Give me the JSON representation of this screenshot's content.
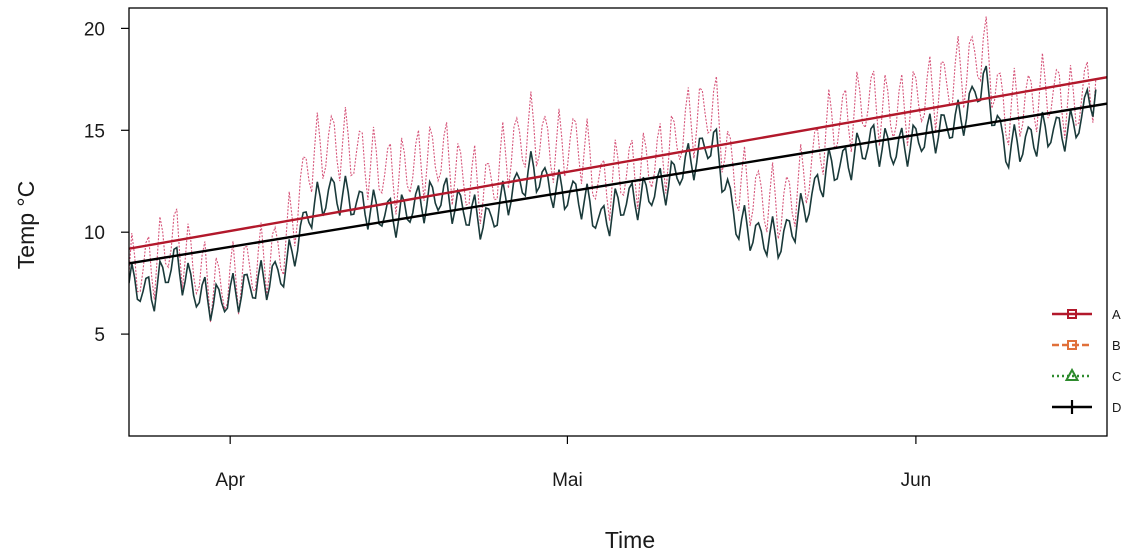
{
  "chart_data": {
    "type": "line",
    "title": "",
    "xlabel": "Time",
    "ylabel": "Temp °C",
    "x_ticks": [
      {
        "label": "Apr",
        "date": "2021-04-01"
      },
      {
        "label": "Mai",
        "date": "2021-05-01"
      },
      {
        "label": "Jun",
        "date": "2021-06-01"
      }
    ],
    "y_ticks": [
      5,
      10,
      15,
      20
    ],
    "xlim": [
      "2021-03-23",
      "2021-06-18"
    ],
    "ylim": [
      0,
      21
    ],
    "grid": false,
    "legend_position": "bottom-right",
    "legend": [
      {
        "label": "A",
        "color": "#b2182b",
        "marker": "square",
        "dash": "solid"
      },
      {
        "label": "B",
        "color": "#e0703a",
        "marker": "square",
        "dash": "dashed"
      },
      {
        "label": "C",
        "color": "#2e8b2e",
        "marker": "triangle",
        "dash": "dotted"
      },
      {
        "label": "D",
        "color": "#000000",
        "marker": "plus",
        "dash": "solid"
      }
    ],
    "series": [
      {
        "color": "#d6557a",
        "style": "dotted",
        "x": [
          "2021-03-23",
          "2021-03-25",
          "2021-03-27",
          "2021-03-29",
          "2021-03-31",
          "2021-04-02",
          "2021-04-04",
          "2021-04-06",
          "2021-04-08",
          "2021-04-10",
          "2021-04-12",
          "2021-04-14",
          "2021-04-16",
          "2021-04-18",
          "2021-04-20",
          "2021-04-22",
          "2021-04-24",
          "2021-04-26",
          "2021-04-28",
          "2021-04-30",
          "2021-05-02",
          "2021-05-04",
          "2021-05-06",
          "2021-05-08",
          "2021-05-10",
          "2021-05-12",
          "2021-05-14",
          "2021-05-16",
          "2021-05-18",
          "2021-05-20",
          "2021-05-22",
          "2021-05-24",
          "2021-05-26",
          "2021-05-28",
          "2021-05-30",
          "2021-06-01",
          "2021-06-03",
          "2021-06-05",
          "2021-06-07",
          "2021-06-09",
          "2021-06-11",
          "2021-06-13",
          "2021-06-15",
          "2021-06-17"
        ],
        "y": [
          8.0,
          8.5,
          9.8,
          8.2,
          7.2,
          8.0,
          8.6,
          9.5,
          13.5,
          14.5,
          14.0,
          13.2,
          12.8,
          13.5,
          13.8,
          12.5,
          12.2,
          14.2,
          15.0,
          14.0,
          14.5,
          12.2,
          13.0,
          13.2,
          14.0,
          15.5,
          16.2,
          12.5,
          11.8,
          11.2,
          12.5,
          15.0,
          15.8,
          16.5,
          15.8,
          16.5,
          17.0,
          17.8,
          19.0,
          15.8,
          16.5,
          17.0,
          16.2,
          17.5
        ]
      },
      {
        "color": "#1a3a3a",
        "style": "solid",
        "x": [
          "2021-03-23",
          "2021-03-25",
          "2021-03-27",
          "2021-03-29",
          "2021-03-31",
          "2021-04-02",
          "2021-04-04",
          "2021-04-06",
          "2021-04-08",
          "2021-04-10",
          "2021-04-12",
          "2021-04-14",
          "2021-04-16",
          "2021-04-18",
          "2021-04-20",
          "2021-04-22",
          "2021-04-24",
          "2021-04-26",
          "2021-04-28",
          "2021-04-30",
          "2021-05-02",
          "2021-05-04",
          "2021-05-06",
          "2021-05-08",
          "2021-05-10",
          "2021-05-12",
          "2021-05-14",
          "2021-05-16",
          "2021-05-18",
          "2021-05-20",
          "2021-05-22",
          "2021-05-24",
          "2021-05-26",
          "2021-05-28",
          "2021-05-30",
          "2021-06-01",
          "2021-06-03",
          "2021-06-05",
          "2021-06-07",
          "2021-06-09",
          "2021-06-11",
          "2021-06-13",
          "2021-06-15",
          "2021-06-17"
        ],
        "y": [
          7.5,
          7.0,
          8.6,
          7.0,
          6.6,
          7.2,
          7.6,
          8.2,
          11.0,
          12.0,
          11.5,
          11.0,
          10.8,
          11.5,
          11.8,
          11.0,
          10.5,
          12.0,
          13.0,
          12.0,
          11.8,
          10.5,
          11.5,
          11.8,
          12.5,
          13.5,
          14.5,
          10.5,
          9.8,
          9.6,
          11.0,
          13.0,
          13.5,
          14.5,
          14.0,
          14.5,
          15.0,
          15.5,
          17.5,
          14.0,
          14.5,
          15.0,
          15.0,
          17.0
        ]
      },
      {
        "color": "#b2182b",
        "style": "trend",
        "x": [
          "2021-03-20",
          "2021-06-19"
        ],
        "y": [
          8.9,
          17.7
        ]
      },
      {
        "color": "#000000",
        "style": "trend",
        "x": [
          "2021-03-20",
          "2021-06-19"
        ],
        "y": [
          8.2,
          16.4
        ]
      }
    ]
  }
}
